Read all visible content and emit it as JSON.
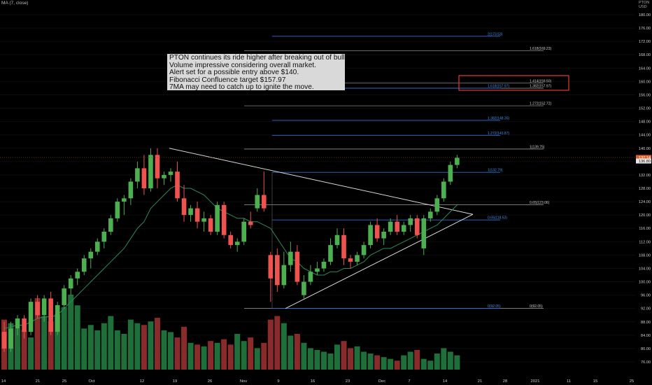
{
  "indicator_label": "MA (7, close)",
  "currency": {
    "line1": "PTON",
    "line2": "USD"
  },
  "annotation_lines": [
    "PTON continues its ride higher after breaking out of bullish pennant.",
    "Volume impressive considering overall market.",
    "Alert set for a possible entry above $140.",
    "Fibonacci Confluence target $157.97",
    "7MA may need to catch up to ignite the move."
  ],
  "colors": {
    "up": "#4caf50",
    "down": "#ef5350",
    "vol_up": "#1f6f3a",
    "vol_down": "#8a2b2b",
    "ma": "#2e8b57",
    "fib_blue": "#2f6fd6",
    "fib_label": "#4a90e2",
    "fib_gray": "#8a8a8a",
    "trendline": "#d8d8d8",
    "highlight": "#e53935",
    "last_price_bg": "#e0602a"
  },
  "chart_data": {
    "type": "candlestick",
    "symbol": "PTON",
    "indicator": "MA (7, close)",
    "x_ticks": [
      "14",
      "21",
      "25",
      "Oct",
      "12",
      "19",
      "26",
      "Nov",
      "9",
      "16",
      "23",
      "Dec",
      "7",
      "14",
      "21",
      "28",
      "2021",
      "11",
      "15",
      "25"
    ],
    "y_ticks": [
      "180.00",
      "176.00",
      "172.00",
      "168.00",
      "164.00",
      "160.00",
      "156.00",
      "152.00",
      "148.00",
      "144.00",
      "140.00",
      "136.00",
      "132.00",
      "128.00",
      "124.00",
      "120.00",
      "116.00",
      "112.00",
      "108.00",
      "104.00",
      "100.00",
      "96.00",
      "92.00",
      "88.00",
      "84.00",
      "80.00",
      "76.00"
    ],
    "ylim": [
      74,
      184
    ],
    "last_price": "137.14",
    "prev_price_tag": "136.80",
    "candles": [
      {
        "o": 85.0,
        "h": 88.0,
        "l": 79.0,
        "c": 80.0
      },
      {
        "o": 80.0,
        "h": 88.0,
        "l": 79.0,
        "c": 86.0
      },
      {
        "o": 86.0,
        "h": 90.0,
        "l": 84.0,
        "c": 89.0
      },
      {
        "o": 89.0,
        "h": 90.0,
        "l": 83.0,
        "c": 85.0
      },
      {
        "o": 85.0,
        "h": 95.0,
        "l": 84.0,
        "c": 94.0
      },
      {
        "o": 94.0,
        "h": 96.0,
        "l": 89.0,
        "c": 90.0
      },
      {
        "o": 90.0,
        "h": 96.0,
        "l": 88.0,
        "c": 95.0
      },
      {
        "o": 95.0,
        "h": 97.0,
        "l": 84.0,
        "c": 85.0
      },
      {
        "o": 85.0,
        "h": 94.0,
        "l": 84.0,
        "c": 93.0
      },
      {
        "o": 93.0,
        "h": 99.0,
        "l": 92.0,
        "c": 98.0
      },
      {
        "o": 98.0,
        "h": 102.0,
        "l": 96.0,
        "c": 101.0
      },
      {
        "o": 101.0,
        "h": 104.0,
        "l": 99.0,
        "c": 103.0
      },
      {
        "o": 103.0,
        "h": 108.0,
        "l": 102.0,
        "c": 107.0
      },
      {
        "o": 107.0,
        "h": 110.0,
        "l": 104.0,
        "c": 109.0
      },
      {
        "o": 109.0,
        "h": 113.0,
        "l": 108.0,
        "c": 112.0
      },
      {
        "o": 112.0,
        "h": 116.0,
        "l": 110.0,
        "c": 115.0
      },
      {
        "o": 115.0,
        "h": 120.0,
        "l": 114.0,
        "c": 119.0
      },
      {
        "o": 119.0,
        "h": 125.0,
        "l": 118.0,
        "c": 124.0
      },
      {
        "o": 124.0,
        "h": 126.0,
        "l": 120.0,
        "c": 125.0
      },
      {
        "o": 125.0,
        "h": 131.0,
        "l": 123.0,
        "c": 130.0
      },
      {
        "o": 130.0,
        "h": 136.0,
        "l": 128.0,
        "c": 134.0
      },
      {
        "o": 134.0,
        "h": 138.0,
        "l": 126.0,
        "c": 128.0
      },
      {
        "o": 128.0,
        "h": 140.0,
        "l": 127.0,
        "c": 138.0
      },
      {
        "o": 138.0,
        "h": 140.0,
        "l": 128.0,
        "c": 131.0
      },
      {
        "o": 131.0,
        "h": 133.0,
        "l": 129.0,
        "c": 132.0
      },
      {
        "o": 132.0,
        "h": 134.0,
        "l": 130.0,
        "c": 133.0
      },
      {
        "o": 133.0,
        "h": 136.0,
        "l": 124.0,
        "c": 125.0
      },
      {
        "o": 125.0,
        "h": 129.0,
        "l": 118.0,
        "c": 120.0
      },
      {
        "o": 120.0,
        "h": 123.0,
        "l": 118.0,
        "c": 122.0
      },
      {
        "o": 122.0,
        "h": 124.0,
        "l": 116.0,
        "c": 118.0
      },
      {
        "o": 118.0,
        "h": 121.0,
        "l": 115.0,
        "c": 119.0
      },
      {
        "o": 119.0,
        "h": 120.0,
        "l": 114.0,
        "c": 115.0
      },
      {
        "o": 115.0,
        "h": 124.0,
        "l": 114.0,
        "c": 123.0
      },
      {
        "o": 123.0,
        "h": 124.0,
        "l": 113.0,
        "c": 114.0
      },
      {
        "o": 114.0,
        "h": 115.0,
        "l": 110.0,
        "c": 111.0
      },
      {
        "o": 111.0,
        "h": 113.0,
        "l": 109.0,
        "c": 112.0
      },
      {
        "o": 112.0,
        "h": 119.0,
        "l": 111.0,
        "c": 118.0
      },
      {
        "o": 118.0,
        "h": 121.0,
        "l": 116.0,
        "c": 117.0
      },
      {
        "o": 122.0,
        "h": 128.0,
        "l": 121.0,
        "c": 126.0
      },
      {
        "o": 126.0,
        "h": 133.0,
        "l": 121.0,
        "c": 122.0
      },
      {
        "o": 108.0,
        "h": 109.0,
        "l": 94.0,
        "c": 101.0
      },
      {
        "o": 108.0,
        "h": 110.0,
        "l": 97.0,
        "c": 99.0
      },
      {
        "o": 99.0,
        "h": 109.0,
        "l": 98.0,
        "c": 105.0
      },
      {
        "o": 105.0,
        "h": 112.0,
        "l": 103.0,
        "c": 109.0
      },
      {
        "o": 109.0,
        "h": 111.0,
        "l": 99.0,
        "c": 100.0
      },
      {
        "o": 96.0,
        "h": 102.0,
        "l": 95.0,
        "c": 100.0
      },
      {
        "o": 100.0,
        "h": 105.0,
        "l": 99.0,
        "c": 103.0
      },
      {
        "o": 103.0,
        "h": 106.0,
        "l": 102.0,
        "c": 104.0
      },
      {
        "o": 104.0,
        "h": 107.0,
        "l": 103.0,
        "c": 106.0
      },
      {
        "o": 106.0,
        "h": 113.0,
        "l": 105.0,
        "c": 111.0
      },
      {
        "o": 111.0,
        "h": 116.0,
        "l": 110.0,
        "c": 114.0
      },
      {
        "o": 114.0,
        "h": 116.0,
        "l": 105.0,
        "c": 107.0
      },
      {
        "o": 107.0,
        "h": 108.0,
        "l": 104.0,
        "c": 106.0
      },
      {
        "o": 106.0,
        "h": 109.0,
        "l": 105.0,
        "c": 108.0
      },
      {
        "o": 108.0,
        "h": 112.0,
        "l": 107.0,
        "c": 111.0
      },
      {
        "o": 111.0,
        "h": 118.0,
        "l": 110.0,
        "c": 117.0
      },
      {
        "o": 117.0,
        "h": 119.0,
        "l": 112.0,
        "c": 113.0
      },
      {
        "o": 113.0,
        "h": 116.0,
        "l": 111.0,
        "c": 115.0
      },
      {
        "o": 115.0,
        "h": 119.0,
        "l": 114.0,
        "c": 118.0
      },
      {
        "o": 118.0,
        "h": 120.0,
        "l": 114.0,
        "c": 115.0
      },
      {
        "o": 115.0,
        "h": 118.0,
        "l": 114.0,
        "c": 117.0
      },
      {
        "o": 117.0,
        "h": 120.0,
        "l": 115.0,
        "c": 119.0
      },
      {
        "o": 119.0,
        "h": 120.0,
        "l": 113.0,
        "c": 114.0
      },
      {
        "o": 110.0,
        "h": 120.0,
        "l": 108.0,
        "c": 119.0
      },
      {
        "o": 119.0,
        "h": 122.0,
        "l": 118.0,
        "c": 121.0
      },
      {
        "o": 121.0,
        "h": 126.0,
        "l": 120.0,
        "c": 125.0
      },
      {
        "o": 125.0,
        "h": 131.0,
        "l": 124.0,
        "c": 130.0
      },
      {
        "o": 130.0,
        "h": 136.0,
        "l": 129.0,
        "c": 135.0
      },
      {
        "o": 135.0,
        "h": 138.0,
        "l": 134.0,
        "c": 137.14
      }
    ],
    "volume": [
      28,
      26,
      23,
      22,
      18,
      40,
      30,
      27,
      31,
      35,
      42,
      36,
      23,
      25,
      22,
      26,
      30,
      22,
      20,
      28,
      26,
      25,
      27,
      29,
      22,
      21,
      18,
      24,
      15,
      14,
      13,
      16,
      15,
      17,
      14,
      20,
      16,
      18,
      12,
      15,
      28,
      30,
      26,
      19,
      20,
      15,
      12,
      11,
      10,
      9,
      14,
      16,
      12,
      13,
      10,
      9,
      8,
      7,
      6,
      5,
      8,
      10,
      11,
      6,
      5,
      9,
      12,
      10,
      8
    ],
    "ma7": [
      86,
      86.5,
      87,
      87,
      88,
      89,
      89.5,
      89.5,
      90,
      92,
      94,
      96,
      98,
      100,
      102,
      104,
      106,
      108,
      110,
      113,
      116,
      118,
      122,
      124,
      126,
      128,
      129,
      128,
      128,
      127,
      126,
      124,
      122,
      121,
      120,
      119,
      119,
      118,
      118,
      117,
      116,
      113,
      110,
      107,
      106,
      104,
      103,
      102,
      102,
      103,
      103,
      104,
      104,
      105,
      106,
      108,
      109,
      110,
      110,
      111,
      112,
      113,
      114,
      115,
      116,
      117,
      119,
      121,
      123
    ],
    "fibonacci_right": {
      "levels": [
        {
          "label": "1.618(169.23)",
          "value": 169.23
        },
        {
          "label": "1.414(159.50)",
          "value": 159.5
        },
        {
          "label": "1.382(157.97)",
          "value": 157.97
        },
        {
          "label": "1.272(152.72)",
          "value": 152.72
        },
        {
          "label": "1(139.75)",
          "value": 139.75
        },
        {
          "label": "0.65(123.06)",
          "value": 123.06
        },
        {
          "label": "0(92.05)",
          "value": 92.05
        }
      ]
    },
    "fibonacci_blue": {
      "levels": [
        {
          "label": "2(173.53)",
          "value": 173.53
        },
        {
          "label": "1.618(157.97)",
          "value": 157.97
        },
        {
          "label": "1.382(148.35)",
          "value": 148.35
        },
        {
          "label": "1.272(143.87)",
          "value": 143.87
        },
        {
          "label": "1(132.79)",
          "value": 132.79
        },
        {
          "label": "0.65(118.53)",
          "value": 118.53
        },
        {
          "label": "0(92.05)",
          "value": 92.05
        }
      ]
    },
    "pennant": {
      "upper": [
        {
          "candle": 22,
          "price": 140.0
        },
        {
          "candle": 65,
          "price": 120.0
        }
      ],
      "lower": [
        {
          "candle": 40,
          "price": 92.0
        },
        {
          "candle": 65,
          "price": 120.0
        }
      ]
    },
    "highlight_box": {
      "from_price": 161.0,
      "to_price": 156.0
    }
  }
}
